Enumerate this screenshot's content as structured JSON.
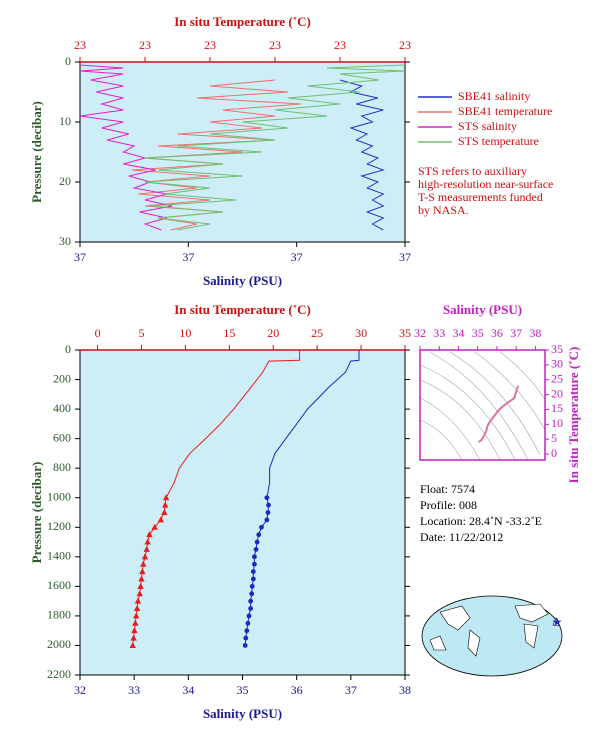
{
  "chart_data": [
    {
      "type": "profile",
      "x_title": "Salinity (PSU)",
      "x2_title": "In situ Temperature (˚C)",
      "y_title": "Pressure (decibar)",
      "xlim": [
        37.0,
        37.3
      ],
      "xticks": [
        {
          "value": 37.0,
          "label": "37"
        },
        {
          "value": 37.1,
          "label": "37"
        },
        {
          "value": 37.2,
          "label": "37"
        },
        {
          "value": 37.3,
          "label": "37"
        }
      ],
      "x2lim": [
        22.9,
        23.4
      ],
      "x2ticks": [
        {
          "value": 22.9,
          "label": "23"
        },
        {
          "value": 23.0,
          "label": "23"
        },
        {
          "value": 23.1,
          "label": "23"
        },
        {
          "value": 23.2,
          "label": "23"
        },
        {
          "value": 23.3,
          "label": "23"
        },
        {
          "value": 23.4,
          "label": "23"
        }
      ],
      "ylim": [
        0,
        30
      ],
      "yticks": [
        0,
        10,
        20,
        30
      ],
      "background": "#cdeef7",
      "series": [
        {
          "name": "SBE41 salinity",
          "color": "#2030c8",
          "axis": "x",
          "pressure": [
            3,
            4,
            5,
            6,
            7,
            8,
            9,
            10,
            11,
            12,
            13,
            14,
            15,
            16,
            17,
            18,
            19,
            20,
            21,
            22,
            23,
            24,
            25,
            26,
            27,
            28
          ],
          "values": [
            37.24,
            37.26,
            37.25,
            37.275,
            37.255,
            37.28,
            37.26,
            37.27,
            37.25,
            37.265,
            37.255,
            37.27,
            37.26,
            37.275,
            37.265,
            37.28,
            37.26,
            37.275,
            37.265,
            37.28,
            37.27,
            37.28,
            37.265,
            37.28,
            37.27,
            37.28
          ]
        },
        {
          "name": "SBE41 temperature",
          "color": "#f07070",
          "axis": "x2",
          "pressure": [
            3,
            4,
            5,
            6,
            7,
            8,
            9,
            10,
            11,
            12,
            13,
            14,
            15,
            16,
            17,
            18,
            19,
            20,
            21,
            22,
            23,
            24,
            25,
            26,
            27,
            28
          ],
          "values": [
            23.2,
            23.1,
            23.22,
            23.08,
            23.24,
            23.12,
            23.2,
            23.1,
            23.18,
            23.05,
            23.2,
            23.02,
            23.15,
            23.0,
            23.12,
            22.98,
            23.1,
            23.0,
            23.08,
            22.99,
            23.1,
            23.0,
            23.12,
            23.02,
            23.08,
            23.04
          ]
        },
        {
          "name": "STS salinity",
          "color": "#e020c8",
          "axis": "x",
          "pressure": [
            0.5,
            1,
            1.5,
            2,
            3,
            4,
            5,
            6,
            7,
            8,
            9,
            10,
            11,
            12,
            13,
            14,
            15,
            16,
            17,
            18,
            19,
            20,
            21,
            22,
            23,
            24,
            25,
            26,
            27,
            28
          ],
          "values": [
            37.0,
            37.04,
            37.0,
            37.04,
            37.01,
            37.04,
            37.015,
            37.04,
            37.02,
            37.04,
            37.0,
            37.04,
            37.02,
            37.045,
            37.025,
            37.05,
            37.04,
            37.06,
            37.04,
            37.07,
            37.045,
            37.065,
            37.05,
            37.08,
            37.06,
            37.085,
            37.055,
            37.08,
            37.06,
            37.075
          ]
        },
        {
          "name": "STS temperature",
          "color": "#70c070",
          "axis": "x2",
          "pressure": [
            0.5,
            1,
            1.5,
            2,
            3,
            4,
            5,
            6,
            7,
            8,
            9,
            10,
            11,
            12,
            13,
            14,
            15,
            16,
            17,
            18,
            19,
            20,
            21,
            22,
            23,
            24,
            25,
            26,
            27,
            28
          ],
          "values": [
            23.4,
            23.28,
            23.4,
            23.3,
            23.36,
            23.25,
            23.33,
            23.22,
            23.3,
            23.2,
            23.28,
            23.15,
            23.22,
            23.1,
            23.2,
            23.05,
            23.18,
            23.0,
            23.12,
            23.02,
            23.15,
            23.0,
            23.1,
            23.03,
            23.14,
            23.01,
            23.12,
            23.02,
            23.1,
            23.05
          ]
        }
      ],
      "note": [
        "STS refers to auxiliary",
        "high-resolution near-surface",
        "T-S measurements funded",
        "by NASA."
      ]
    },
    {
      "type": "profile",
      "x_title": "Salinity (PSU)",
      "x2_title": "In situ Temperature (˚C)",
      "y_title": "Pressure (decibar)",
      "xlim": [
        32,
        38
      ],
      "xticks": [
        32,
        33,
        34,
        35,
        36,
        37,
        38
      ],
      "x2lim": [
        -2,
        35
      ],
      "x2ticks": [
        0,
        5,
        10,
        15,
        20,
        25,
        30,
        35
      ],
      "ylim": [
        0,
        2200
      ],
      "yticks": [
        0,
        200,
        400,
        600,
        800,
        1000,
        1200,
        1400,
        1600,
        1800,
        2000,
        2200
      ],
      "background": "#cdeef7",
      "series": [
        {
          "color": "#e81c1c",
          "axis": "x2",
          "marker": "triangle",
          "pressure": [
            0,
            70,
            75,
            150,
            250,
            400,
            500,
            600,
            700,
            800,
            900,
            1000
          ],
          "values": [
            23,
            23,
            19.5,
            18.8,
            17.5,
            15.5,
            14,
            12.3,
            10.5,
            9.3,
            8.7,
            7.8
          ],
          "sample_pressure": [
            1000,
            1050,
            1100,
            1150,
            1200,
            1250,
            1300,
            1350,
            1400,
            1450,
            1500,
            1550,
            1600,
            1650,
            1700,
            1750,
            1800,
            1850,
            1900,
            1950,
            2000
          ],
          "sample_values": [
            7.8,
            7.7,
            7.6,
            7.2,
            6.5,
            5.9,
            5.7,
            5.6,
            5.4,
            5.2,
            5.1,
            5.0,
            4.9,
            4.8,
            4.6,
            4.5,
            4.4,
            4.3,
            4.2,
            4.1,
            4.0
          ]
        },
        {
          "color": "#1c28c0",
          "axis": "x",
          "marker": "dot",
          "pressure": [
            0,
            70,
            75,
            150,
            250,
            400,
            500,
            600,
            700,
            800,
            900,
            1000
          ],
          "values": [
            37.15,
            37.15,
            37.0,
            36.9,
            36.6,
            36.2,
            36.0,
            35.8,
            35.6,
            35.5,
            35.5,
            35.45
          ],
          "sample_pressure": [
            1000,
            1050,
            1100,
            1150,
            1200,
            1250,
            1300,
            1350,
            1400,
            1450,
            1500,
            1550,
            1600,
            1650,
            1700,
            1750,
            1800,
            1850,
            1900,
            1950,
            2000
          ],
          "sample_values": [
            35.45,
            35.48,
            35.47,
            35.45,
            35.35,
            35.3,
            35.27,
            35.25,
            35.22,
            35.22,
            35.2,
            35.2,
            35.18,
            35.17,
            35.15,
            35.15,
            35.12,
            35.1,
            35.08,
            35.06,
            35.05
          ]
        }
      ]
    },
    {
      "type": "ts",
      "x_title": "Salinity (PSU)",
      "y_title": "In situ Temperature (˚C)",
      "xlim": [
        32,
        38.5
      ],
      "xticks": [
        32,
        33,
        34,
        35,
        36,
        37,
        38
      ],
      "ylim": [
        -2,
        35
      ],
      "yticks": [
        0,
        5,
        10,
        15,
        20,
        25,
        30,
        35
      ],
      "color": "#e070a0",
      "salinity": [
        35.05,
        35.2,
        35.3,
        35.45,
        35.5,
        35.6,
        35.8,
        36.0,
        36.2,
        36.6,
        36.9,
        37.1
      ],
      "temperature": [
        4,
        4.8,
        5.8,
        7.8,
        9.3,
        10.5,
        12.3,
        14,
        15.5,
        17.5,
        18.8,
        23
      ]
    }
  ],
  "info": {
    "float": "Float:  7574",
    "profile": "Profile:  008",
    "location": "Location:  28.4˚N  -33.2˚E",
    "date": "Date:  11/22/2012"
  }
}
